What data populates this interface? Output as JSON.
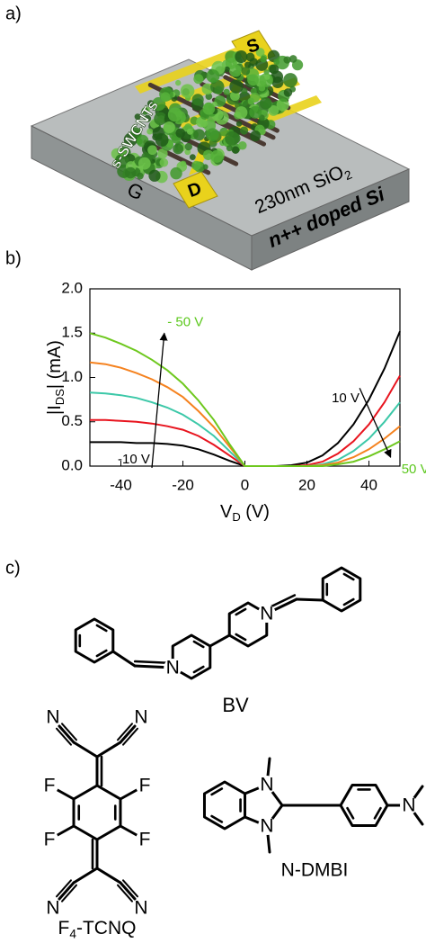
{
  "panel_a": {
    "label": "a)",
    "source": "S",
    "drain": "D",
    "gate": "G",
    "tubes": "s-SWCNTs",
    "oxide": {
      "main": "230nm SiO",
      "sub": "2"
    },
    "substrate": "n++ doped Si"
  },
  "chart_data": {
    "type": "line",
    "label": "b)",
    "xlabel": {
      "main": "V",
      "sub": "D",
      "tail": " (V)"
    },
    "ylabel": {
      "main": "|I",
      "sub": "DS",
      "tail": "| (mA)"
    },
    "x": [
      -50,
      -45,
      -40,
      -35,
      -30,
      -25,
      -20,
      -15,
      -10,
      -5,
      0,
      5,
      10,
      15,
      20,
      25,
      30,
      35,
      40,
      45,
      50
    ],
    "xlim": [
      -50,
      50
    ],
    "xticks": [
      -40,
      -20,
      0,
      20,
      40
    ],
    "ylim": [
      0,
      2
    ],
    "yticks": [
      {
        "value": 0,
        "label": "0.0"
      },
      0.5,
      {
        "value": 1,
        "label": "1.0"
      },
      1.5,
      {
        "value": 2,
        "label": "2.0"
      }
    ],
    "series": [
      {
        "color": "#000000",
        "values": [
          0.27,
          0.27,
          0.27,
          0.26,
          0.26,
          0.25,
          0.23,
          0.19,
          0.13,
          0.06,
          0,
          0,
          0,
          0.01,
          0.04,
          0.12,
          0.26,
          0.47,
          0.75,
          1.1,
          1.52
        ]
      },
      {
        "color": "#e8141e",
        "values": [
          0.52,
          0.52,
          0.51,
          0.5,
          0.48,
          0.45,
          0.41,
          0.34,
          0.24,
          0.12,
          0,
          0,
          0,
          0,
          0.01,
          0.05,
          0.14,
          0.28,
          0.47,
          0.72,
          1.02
        ]
      },
      {
        "color": "#3cc8a8",
        "values": [
          0.83,
          0.82,
          0.8,
          0.77,
          0.72,
          0.66,
          0.58,
          0.47,
          0.34,
          0.17,
          0,
          0,
          0,
          0,
          0,
          0.02,
          0.07,
          0.17,
          0.31,
          0.5,
          0.72
        ]
      },
      {
        "color": "#f5821f",
        "values": [
          1.17,
          1.15,
          1.11,
          1.05,
          0.98,
          0.89,
          0.78,
          0.62,
          0.44,
          0.22,
          0,
          0,
          0,
          0,
          0,
          0.01,
          0.04,
          0.1,
          0.19,
          0.31,
          0.45
        ]
      },
      {
        "color": "#6ec81e",
        "values": [
          1.5,
          1.45,
          1.38,
          1.3,
          1.2,
          1.08,
          0.93,
          0.74,
          0.52,
          0.25,
          0,
          0,
          0,
          0,
          0,
          0,
          0.02,
          0.05,
          0.11,
          0.19,
          0.28
        ]
      }
    ],
    "annotations": [
      {
        "text": "-10 V",
        "color": "#000000"
      },
      {
        "text": "- 50 V",
        "color": "#5cc81e"
      },
      {
        "text": "10 V",
        "color": "#000000"
      },
      {
        "text": "50 V",
        "color": "#5cc81e"
      }
    ]
  },
  "panel_c": {
    "label": "c)",
    "bv": {
      "name": "BV",
      "atoms": [
        "N",
        "N"
      ]
    },
    "f4tcnq": {
      "name": {
        "main": "F",
        "sub": "4",
        "tail": "-TCNQ"
      },
      "atoms": [
        "N",
        "N",
        "F",
        "F",
        "F",
        "F",
        "N",
        "N"
      ]
    },
    "ndmbi": {
      "name": "N-DMBI",
      "atoms": [
        "N",
        "N",
        "N"
      ]
    }
  }
}
